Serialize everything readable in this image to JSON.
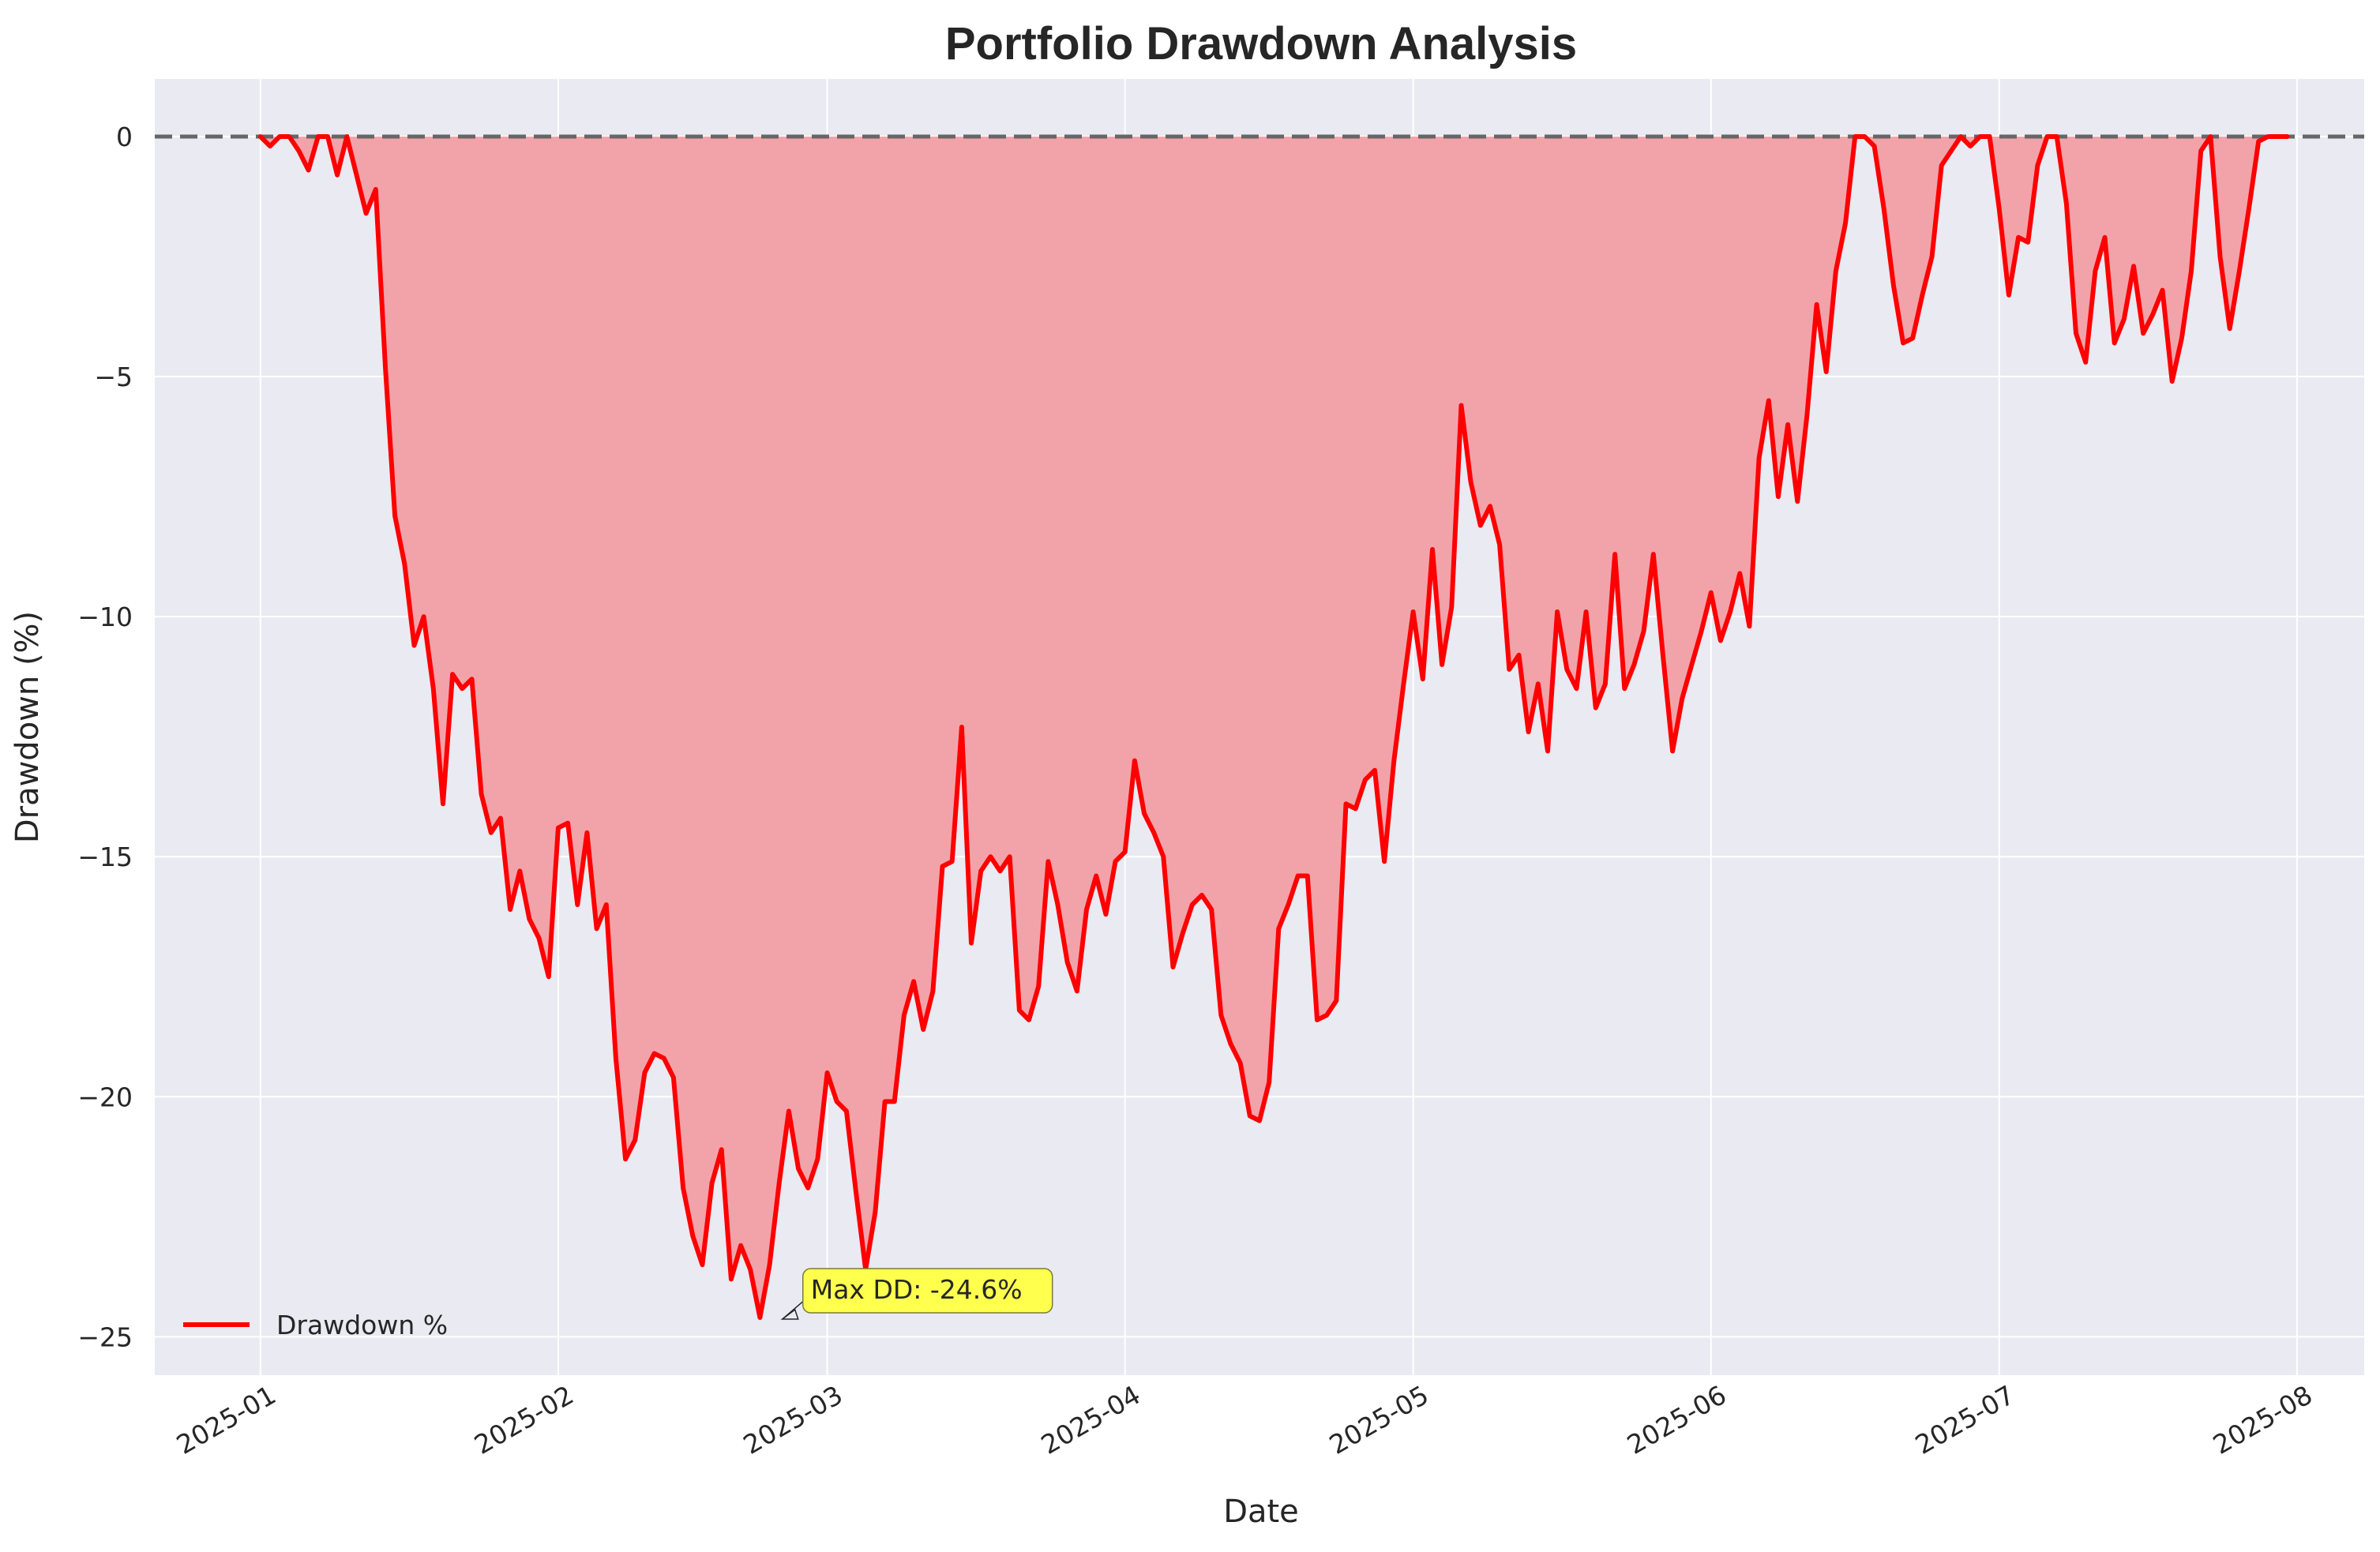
{
  "chart_data": {
    "type": "area",
    "title": "Portfolio Drawdown Analysis",
    "xlabel": "Date",
    "ylabel": "Drawdown (%)",
    "x_ticks": [
      "2025-01",
      "2025-02",
      "2025-03",
      "2025-04",
      "2025-05",
      "2025-06",
      "2025-07",
      "2025-08"
    ],
    "y_ticks": [
      0,
      -5,
      -10,
      -15,
      -20,
      -25
    ],
    "xlim": [
      "2024-12-21",
      "2025-08-08"
    ],
    "ylim": [
      -25.8,
      1.2
    ],
    "grid": true,
    "legend": {
      "position": "lower-left",
      "entries": [
        "Drawdown %"
      ]
    },
    "reference_line": {
      "y": 0,
      "style": "dashed"
    },
    "annotation": {
      "text": "Max DD: -24.6%",
      "x": "2025-02-24",
      "y": -24.6
    },
    "colors": {
      "line": "#ff0000",
      "fill": "#f2a3aa",
      "background": "#eaeaf2",
      "reference": "#666666",
      "annotation_box": "#ffff4d"
    },
    "series": [
      {
        "name": "Drawdown %",
        "x": [
          "2025-01-01",
          "2025-01-02",
          "2025-01-03",
          "2025-01-04",
          "2025-01-05",
          "2025-01-06",
          "2025-01-07",
          "2025-01-08",
          "2025-01-09",
          "2025-01-10",
          "2025-01-11",
          "2025-01-12",
          "2025-01-13",
          "2025-01-14",
          "2025-01-15",
          "2025-01-16",
          "2025-01-17",
          "2025-01-18",
          "2025-01-19",
          "2025-01-20",
          "2025-01-21",
          "2025-01-22",
          "2025-01-23",
          "2025-01-24",
          "2025-01-25",
          "2025-01-26",
          "2025-01-27",
          "2025-01-28",
          "2025-01-29",
          "2025-01-30",
          "2025-01-31",
          "2025-02-01",
          "2025-02-02",
          "2025-02-03",
          "2025-02-04",
          "2025-02-05",
          "2025-02-06",
          "2025-02-07",
          "2025-02-08",
          "2025-02-09",
          "2025-02-10",
          "2025-02-11",
          "2025-02-12",
          "2025-02-13",
          "2025-02-14",
          "2025-02-15",
          "2025-02-16",
          "2025-02-17",
          "2025-02-18",
          "2025-02-19",
          "2025-02-20",
          "2025-02-21",
          "2025-02-22",
          "2025-02-23",
          "2025-02-24",
          "2025-02-25",
          "2025-02-26",
          "2025-02-27",
          "2025-02-28",
          "2025-03-01",
          "2025-03-02",
          "2025-03-03",
          "2025-03-04",
          "2025-03-05",
          "2025-03-06",
          "2025-03-07",
          "2025-03-08",
          "2025-03-09",
          "2025-03-10",
          "2025-03-11",
          "2025-03-12",
          "2025-03-13",
          "2025-03-14",
          "2025-03-15",
          "2025-03-16",
          "2025-03-17",
          "2025-03-18",
          "2025-03-19",
          "2025-03-20",
          "2025-03-21",
          "2025-03-22",
          "2025-03-23",
          "2025-03-24",
          "2025-03-25",
          "2025-03-26",
          "2025-03-27",
          "2025-03-28",
          "2025-03-29",
          "2025-03-30",
          "2025-03-31",
          "2025-04-01",
          "2025-04-02",
          "2025-04-03",
          "2025-04-04",
          "2025-04-05",
          "2025-04-06",
          "2025-04-07",
          "2025-04-08",
          "2025-04-09",
          "2025-04-10",
          "2025-04-11",
          "2025-04-12",
          "2025-04-13",
          "2025-04-14",
          "2025-04-15",
          "2025-04-16",
          "2025-04-17",
          "2025-04-18",
          "2025-04-19",
          "2025-04-20",
          "2025-04-21",
          "2025-04-22",
          "2025-04-23",
          "2025-04-24",
          "2025-04-25",
          "2025-04-26",
          "2025-04-27",
          "2025-04-28",
          "2025-04-29",
          "2025-04-30",
          "2025-05-01",
          "2025-05-02",
          "2025-05-03",
          "2025-05-04",
          "2025-05-05",
          "2025-05-06",
          "2025-05-07",
          "2025-05-08",
          "2025-05-09",
          "2025-05-10",
          "2025-05-11",
          "2025-05-12",
          "2025-05-13",
          "2025-05-14",
          "2025-05-15",
          "2025-05-16",
          "2025-05-17",
          "2025-05-18",
          "2025-05-19",
          "2025-05-20",
          "2025-05-21",
          "2025-05-22",
          "2025-05-23",
          "2025-05-24",
          "2025-05-25",
          "2025-05-26",
          "2025-05-27",
          "2025-05-28",
          "2025-05-29",
          "2025-05-30",
          "2025-05-31",
          "2025-06-01",
          "2025-06-02",
          "2025-06-03",
          "2025-06-04",
          "2025-06-05",
          "2025-06-06",
          "2025-06-07",
          "2025-06-08",
          "2025-06-09",
          "2025-06-10",
          "2025-06-11",
          "2025-06-12",
          "2025-06-13",
          "2025-06-14",
          "2025-06-15",
          "2025-06-16",
          "2025-06-17",
          "2025-06-18",
          "2025-06-19",
          "2025-06-20",
          "2025-06-21",
          "2025-06-22",
          "2025-06-23",
          "2025-06-24",
          "2025-06-25",
          "2025-06-26",
          "2025-06-27",
          "2025-06-28",
          "2025-06-29",
          "2025-06-30",
          "2025-07-01",
          "2025-07-02",
          "2025-07-03",
          "2025-07-04",
          "2025-07-05",
          "2025-07-06",
          "2025-07-07",
          "2025-07-08",
          "2025-07-09",
          "2025-07-10",
          "2025-07-11",
          "2025-07-12",
          "2025-07-13",
          "2025-07-14",
          "2025-07-15",
          "2025-07-16",
          "2025-07-17",
          "2025-07-18",
          "2025-07-19",
          "2025-07-20",
          "2025-07-21",
          "2025-07-22",
          "2025-07-23",
          "2025-07-24",
          "2025-07-25",
          "2025-07-26",
          "2025-07-27",
          "2025-07-28",
          "2025-07-29",
          "2025-07-30",
          "2025-07-31"
        ],
        "values": [
          0,
          -0.2,
          0,
          0,
          -0.3,
          -0.7,
          0,
          0,
          -0.8,
          0,
          -0.8,
          -1.6,
          -1.1,
          -4.8,
          -7.9,
          -8.9,
          -10.6,
          -10.0,
          -11.5,
          -13.9,
          -11.2,
          -11.5,
          -11.3,
          -13.7,
          -14.5,
          -14.2,
          -16.1,
          -15.3,
          -16.3,
          -16.7,
          -17.5,
          -14.4,
          -14.3,
          -16.0,
          -14.5,
          -16.5,
          -16.0,
          -19.2,
          -21.3,
          -20.9,
          -19.5,
          -19.1,
          -19.2,
          -19.6,
          -21.9,
          -22.9,
          -23.5,
          -21.8,
          -21.1,
          -23.8,
          -23.1,
          -23.6,
          -24.6,
          -23.5,
          -21.8,
          -20.3,
          -21.5,
          -21.9,
          -21.3,
          -19.5,
          -20.1,
          -20.3,
          -22.0,
          -23.6,
          -22.4,
          -20.1,
          -20.1,
          -18.3,
          -17.6,
          -18.6,
          -17.8,
          -15.2,
          -15.1,
          -12.3,
          -16.8,
          -15.3,
          -15.0,
          -15.3,
          -15.0,
          -18.2,
          -18.4,
          -17.7,
          -15.1,
          -16.0,
          -17.2,
          -17.8,
          -16.1,
          -15.4,
          -16.2,
          -15.1,
          -14.9,
          -13.0,
          -14.1,
          -14.5,
          -15.0,
          -17.3,
          -16.6,
          -16.0,
          -15.8,
          -16.1,
          -18.3,
          -18.9,
          -19.3,
          -20.4,
          -20.5,
          -19.7,
          -16.5,
          -16.0,
          -15.4,
          -15.4,
          -18.4,
          -18.3,
          -18.0,
          -13.9,
          -14.0,
          -13.4,
          -13.2,
          -15.1,
          -13.0,
          -11.4,
          -9.9,
          -11.3,
          -8.6,
          -11.0,
          -9.8,
          -5.6,
          -7.2,
          -8.1,
          -7.7,
          -8.5,
          -11.1,
          -10.8,
          -12.4,
          -11.4,
          -12.8,
          -9.9,
          -11.1,
          -11.5,
          -9.9,
          -11.9,
          -11.4,
          -8.7,
          -11.5,
          -11.0,
          -10.3,
          -8.7,
          -10.8,
          -12.8,
          -11.7,
          -11.0,
          -10.3,
          -9.5,
          -10.5,
          -9.9,
          -9.1,
          -10.2,
          -6.7,
          -5.5,
          -7.5,
          -6.0,
          -7.6,
          -5.8,
          -3.5,
          -4.9,
          -2.8,
          -1.8,
          0,
          0,
          -0.2,
          -1.5,
          -3.1,
          -4.3,
          -4.2,
          -3.3,
          -2.5,
          -0.6,
          -0.3,
          0,
          -0.2,
          0,
          0,
          -1.5,
          -3.3,
          -2.1,
          -2.2,
          -0.6,
          0,
          0,
          -1.4,
          -4.1,
          -4.7,
          -2.8,
          -2.1,
          -4.3,
          -3.8,
          -2.7,
          -4.1,
          -3.7,
          -3.2,
          -5.1,
          -4.2,
          -2.8,
          -0.3,
          0,
          -2.5,
          -4.0,
          -2.8,
          -1.5,
          -0.1,
          0,
          0,
          0
        ]
      }
    ]
  }
}
